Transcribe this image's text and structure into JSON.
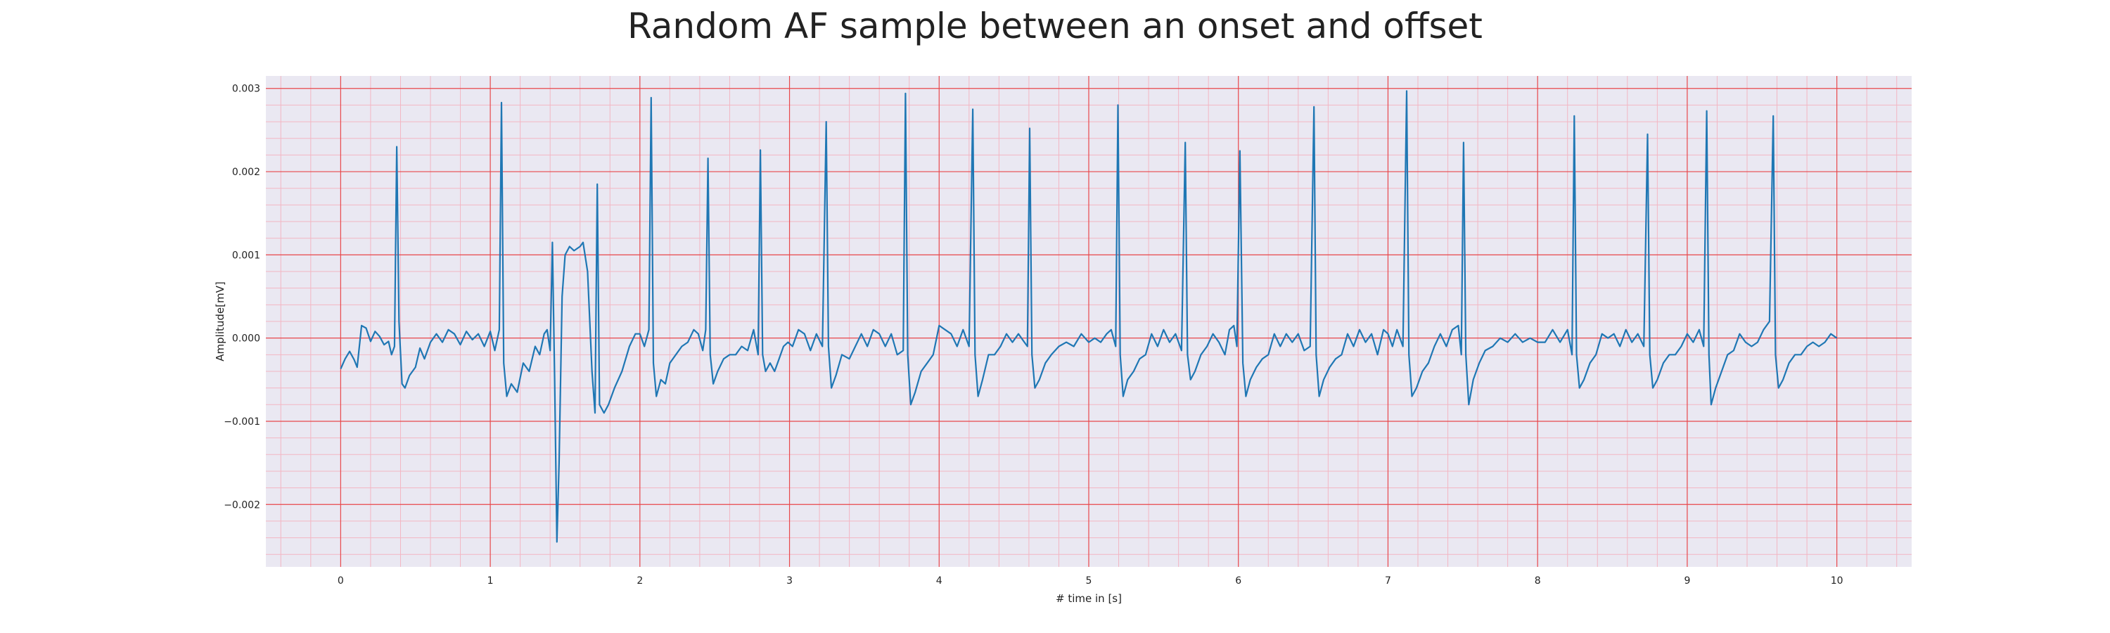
{
  "chart_data": {
    "type": "line",
    "title": "Random AF sample between an onset and offset",
    "xlabel": "# time in [s]",
    "ylabel": "Amplitude[mV]",
    "xlim": [
      -0.5,
      10.5
    ],
    "ylim": [
      -0.00275,
      0.00315
    ],
    "xticks": [
      0,
      1,
      2,
      3,
      4,
      5,
      6,
      7,
      8,
      9,
      10
    ],
    "xtick_labels": [
      "0",
      "1",
      "2",
      "3",
      "4",
      "5",
      "6",
      "7",
      "8",
      "9",
      "10"
    ],
    "yticks": [
      0.003,
      0.002,
      0.001,
      0.0,
      -0.001,
      -0.002
    ],
    "ytick_labels": [
      "0.003",
      "0.002",
      "0.001",
      "0.000",
      "−0.001",
      "−0.002"
    ],
    "grid": true,
    "major_grid_color": "#e8474b",
    "minor_grid_color": "#f3b6c3",
    "background_color": "#eae8f2",
    "line_color": "#1f77b4",
    "series": [
      {
        "values": [
          [
            0.0,
            -0.00037
          ],
          [
            0.03,
            -0.00025
          ],
          [
            0.06,
            -0.00016
          ],
          [
            0.09,
            -0.00026
          ],
          [
            0.11,
            -0.00035
          ],
          [
            0.14,
            0.00015
          ],
          [
            0.17,
            0.00012
          ],
          [
            0.2,
            -4e-05
          ],
          [
            0.23,
            8e-05
          ],
          [
            0.26,
            2e-05
          ],
          [
            0.29,
            -8e-05
          ],
          [
            0.32,
            -4e-05
          ],
          [
            0.34,
            -0.0002
          ],
          [
            0.36,
            -0.0001
          ],
          [
            0.375,
            0.0023
          ],
          [
            0.39,
            0.0002
          ],
          [
            0.41,
            -0.00055
          ],
          [
            0.43,
            -0.0006
          ],
          [
            0.46,
            -0.00045
          ],
          [
            0.5,
            -0.00035
          ],
          [
            0.53,
            -0.00012
          ],
          [
            0.56,
            -0.00025
          ],
          [
            0.6,
            -5e-05
          ],
          [
            0.64,
            5e-05
          ],
          [
            0.68,
            -5e-05
          ],
          [
            0.72,
            0.0001
          ],
          [
            0.76,
            5e-05
          ],
          [
            0.8,
            -8e-05
          ],
          [
            0.84,
            8e-05
          ],
          [
            0.88,
            -2e-05
          ],
          [
            0.92,
            5e-05
          ],
          [
            0.96,
            -0.0001
          ],
          [
            1.0,
            8e-05
          ],
          [
            1.03,
            -0.00015
          ],
          [
            1.06,
            0.0001
          ],
          [
            1.075,
            0.00283
          ],
          [
            1.09,
            -0.0003
          ],
          [
            1.11,
            -0.0007
          ],
          [
            1.14,
            -0.00055
          ],
          [
            1.18,
            -0.00065
          ],
          [
            1.22,
            -0.0003
          ],
          [
            1.26,
            -0.0004
          ],
          [
            1.3,
            -0.0001
          ],
          [
            1.33,
            -0.0002
          ],
          [
            1.36,
            5e-05
          ],
          [
            1.38,
            0.0001
          ],
          [
            1.4,
            -0.00015
          ],
          [
            1.415,
            0.00115
          ],
          [
            1.43,
            -0.0005
          ],
          [
            1.445,
            -0.00245
          ],
          [
            1.46,
            -0.0015
          ],
          [
            1.48,
            0.0005
          ],
          [
            1.5,
            0.001
          ],
          [
            1.53,
            0.0011
          ],
          [
            1.56,
            0.00105
          ],
          [
            1.6,
            0.0011
          ],
          [
            1.62,
            0.00115
          ],
          [
            1.65,
            0.0008
          ],
          [
            1.68,
            -0.0004
          ],
          [
            1.7,
            -0.0009
          ],
          [
            1.715,
            0.00185
          ],
          [
            1.73,
            -0.0008
          ],
          [
            1.76,
            -0.0009
          ],
          [
            1.79,
            -0.0008
          ],
          [
            1.83,
            -0.0006
          ],
          [
            1.88,
            -0.0004
          ],
          [
            1.93,
            -0.0001
          ],
          [
            1.97,
            5e-05
          ],
          [
            2.0,
            5e-05
          ],
          [
            2.03,
            -0.0001
          ],
          [
            2.06,
            0.0001
          ],
          [
            2.075,
            0.00289
          ],
          [
            2.09,
            -0.0003
          ],
          [
            2.11,
            -0.0007
          ],
          [
            2.14,
            -0.0005
          ],
          [
            2.17,
            -0.00055
          ],
          [
            2.2,
            -0.0003
          ],
          [
            2.24,
            -0.0002
          ],
          [
            2.28,
            -0.0001
          ],
          [
            2.32,
            -5e-05
          ],
          [
            2.36,
            0.0001
          ],
          [
            2.39,
            5e-05
          ],
          [
            2.42,
            -0.00015
          ],
          [
            2.44,
            0.0001
          ],
          [
            2.455,
            0.00216
          ],
          [
            2.47,
            -0.0002
          ],
          [
            2.49,
            -0.00055
          ],
          [
            2.52,
            -0.0004
          ],
          [
            2.56,
            -0.00025
          ],
          [
            2.6,
            -0.0002
          ],
          [
            2.64,
            -0.0002
          ],
          [
            2.68,
            -0.0001
          ],
          [
            2.72,
            -0.00015
          ],
          [
            2.76,
            0.0001
          ],
          [
            2.79,
            -0.0002
          ],
          [
            2.805,
            0.00226
          ],
          [
            2.82,
            -0.0002
          ],
          [
            2.84,
            -0.0004
          ],
          [
            2.87,
            -0.0003
          ],
          [
            2.9,
            -0.0004
          ],
          [
            2.93,
            -0.00025
          ],
          [
            2.96,
            -0.0001
          ],
          [
            2.99,
            -5e-05
          ],
          [
            3.02,
            -0.0001
          ],
          [
            3.06,
            0.0001
          ],
          [
            3.1,
            5e-05
          ],
          [
            3.14,
            -0.00015
          ],
          [
            3.18,
            5e-05
          ],
          [
            3.22,
            -0.0001
          ],
          [
            3.245,
            0.0026
          ],
          [
            3.26,
            -0.0001
          ],
          [
            3.28,
            -0.0006
          ],
          [
            3.31,
            -0.00045
          ],
          [
            3.35,
            -0.0002
          ],
          [
            3.4,
            -0.00025
          ],
          [
            3.44,
            -0.0001
          ],
          [
            3.48,
            5e-05
          ],
          [
            3.52,
            -0.0001
          ],
          [
            3.56,
            0.0001
          ],
          [
            3.6,
            5e-05
          ],
          [
            3.64,
            -0.0001
          ],
          [
            3.68,
            5e-05
          ],
          [
            3.72,
            -0.0002
          ],
          [
            3.76,
            -0.00015
          ],
          [
            3.775,
            0.00294
          ],
          [
            3.79,
            -0.0002
          ],
          [
            3.81,
            -0.0008
          ],
          [
            3.84,
            -0.00065
          ],
          [
            3.88,
            -0.0004
          ],
          [
            3.92,
            -0.0003
          ],
          [
            3.96,
            -0.0002
          ],
          [
            4.0,
            0.00015
          ],
          [
            4.04,
            0.0001
          ],
          [
            4.08,
            5e-05
          ],
          [
            4.12,
            -0.0001
          ],
          [
            4.16,
            0.0001
          ],
          [
            4.2,
            -0.0001
          ],
          [
            4.225,
            0.00275
          ],
          [
            4.24,
            -0.0002
          ],
          [
            4.26,
            -0.0007
          ],
          [
            4.29,
            -0.0005
          ],
          [
            4.33,
            -0.0002
          ],
          [
            4.37,
            -0.0002
          ],
          [
            4.41,
            -0.0001
          ],
          [
            4.45,
            5e-05
          ],
          [
            4.49,
            -5e-05
          ],
          [
            4.53,
            5e-05
          ],
          [
            4.57,
            -5e-05
          ],
          [
            4.59,
            -0.0001
          ],
          [
            4.605,
            0.00252
          ],
          [
            4.62,
            -0.0002
          ],
          [
            4.64,
            -0.0006
          ],
          [
            4.67,
            -0.0005
          ],
          [
            4.71,
            -0.0003
          ],
          [
            4.75,
            -0.0002
          ],
          [
            4.8,
            -0.0001
          ],
          [
            4.85,
            -5e-05
          ],
          [
            4.9,
            -0.0001
          ],
          [
            4.95,
            5e-05
          ],
          [
            5.0,
            -5e-05
          ],
          [
            5.04,
            0.0
          ],
          [
            5.08,
            -5e-05
          ],
          [
            5.12,
            5e-05
          ],
          [
            5.15,
            0.0001
          ],
          [
            5.18,
            -0.0001
          ],
          [
            5.195,
            0.0028
          ],
          [
            5.21,
            -0.0002
          ],
          [
            5.23,
            -0.0007
          ],
          [
            5.26,
            -0.0005
          ],
          [
            5.3,
            -0.0004
          ],
          [
            5.34,
            -0.00025
          ],
          [
            5.38,
            -0.0002
          ],
          [
            5.42,
            5e-05
          ],
          [
            5.46,
            -0.0001
          ],
          [
            5.5,
            0.0001
          ],
          [
            5.54,
            -5e-05
          ],
          [
            5.58,
            5e-05
          ],
          [
            5.62,
            -0.00015
          ],
          [
            5.645,
            0.00235
          ],
          [
            5.66,
            -0.0002
          ],
          [
            5.68,
            -0.0005
          ],
          [
            5.71,
            -0.0004
          ],
          [
            5.75,
            -0.0002
          ],
          [
            5.79,
            -0.0001
          ],
          [
            5.83,
            5e-05
          ],
          [
            5.87,
            -5e-05
          ],
          [
            5.91,
            -0.0002
          ],
          [
            5.94,
            0.0001
          ],
          [
            5.97,
            0.00015
          ],
          [
            5.99,
            -0.0001
          ],
          [
            6.01,
            0.00225
          ],
          [
            6.03,
            -0.0003
          ],
          [
            6.05,
            -0.0007
          ],
          [
            6.08,
            -0.0005
          ],
          [
            6.12,
            -0.00035
          ],
          [
            6.16,
            -0.00025
          ],
          [
            6.2,
            -0.0002
          ],
          [
            6.24,
            5e-05
          ],
          [
            6.28,
            -0.0001
          ],
          [
            6.32,
            5e-05
          ],
          [
            6.36,
            -5e-05
          ],
          [
            6.4,
            5e-05
          ],
          [
            6.44,
            -0.00015
          ],
          [
            6.48,
            -0.0001
          ],
          [
            6.505,
            0.00278
          ],
          [
            6.52,
            -0.0002
          ],
          [
            6.54,
            -0.0007
          ],
          [
            6.57,
            -0.0005
          ],
          [
            6.61,
            -0.00035
          ],
          [
            6.65,
            -0.00025
          ],
          [
            6.69,
            -0.0002
          ],
          [
            6.73,
            5e-05
          ],
          [
            6.77,
            -0.0001
          ],
          [
            6.81,
            0.0001
          ],
          [
            6.85,
            -5e-05
          ],
          [
            6.89,
            5e-05
          ],
          [
            6.93,
            -0.0002
          ],
          [
            6.97,
            0.0001
          ],
          [
            7.0,
            5e-05
          ],
          [
            7.03,
            -0.0001
          ],
          [
            7.06,
            0.0001
          ],
          [
            7.1,
            -0.0001
          ],
          [
            7.125,
            0.00297
          ],
          [
            7.14,
            -0.0002
          ],
          [
            7.16,
            -0.0007
          ],
          [
            7.19,
            -0.0006
          ],
          [
            7.23,
            -0.0004
          ],
          [
            7.27,
            -0.0003
          ],
          [
            7.31,
            -0.0001
          ],
          [
            7.35,
            5e-05
          ],
          [
            7.39,
            -0.0001
          ],
          [
            7.43,
            0.0001
          ],
          [
            7.47,
            0.00015
          ],
          [
            7.49,
            -0.0002
          ],
          [
            7.505,
            0.00235
          ],
          [
            7.52,
            -0.0002
          ],
          [
            7.54,
            -0.0008
          ],
          [
            7.57,
            -0.0005
          ],
          [
            7.61,
            -0.0003
          ],
          [
            7.65,
            -0.00015
          ],
          [
            7.7,
            -0.0001
          ],
          [
            7.75,
            0.0
          ],
          [
            7.8,
            -5e-05
          ],
          [
            7.85,
            5e-05
          ],
          [
            7.9,
            -5e-05
          ],
          [
            7.95,
            0.0
          ],
          [
            8.0,
            -5e-05
          ],
          [
            8.05,
            -5e-05
          ],
          [
            8.1,
            0.0001
          ],
          [
            8.15,
            -5e-05
          ],
          [
            8.2,
            0.0001
          ],
          [
            8.23,
            -0.0002
          ],
          [
            8.245,
            0.00267
          ],
          [
            8.26,
            -0.0002
          ],
          [
            8.28,
            -0.0006
          ],
          [
            8.31,
            -0.0005
          ],
          [
            8.35,
            -0.0003
          ],
          [
            8.39,
            -0.0002
          ],
          [
            8.43,
            5e-05
          ],
          [
            8.47,
            0.0
          ],
          [
            8.51,
            5e-05
          ],
          [
            8.55,
            -0.0001
          ],
          [
            8.59,
            0.0001
          ],
          [
            8.63,
            -5e-05
          ],
          [
            8.67,
            5e-05
          ],
          [
            8.71,
            -0.0001
          ],
          [
            8.735,
            0.00245
          ],
          [
            8.75,
            -0.0002
          ],
          [
            8.77,
            -0.0006
          ],
          [
            8.8,
            -0.0005
          ],
          [
            8.84,
            -0.0003
          ],
          [
            8.88,
            -0.0002
          ],
          [
            8.92,
            -0.0002
          ],
          [
            8.96,
            -0.0001
          ],
          [
            9.0,
            5e-05
          ],
          [
            9.04,
            -5e-05
          ],
          [
            9.08,
            0.0001
          ],
          [
            9.11,
            -0.0001
          ],
          [
            9.13,
            0.00273
          ],
          [
            9.145,
            -0.0002
          ],
          [
            9.16,
            -0.0008
          ],
          [
            9.19,
            -0.0006
          ],
          [
            9.23,
            -0.0004
          ],
          [
            9.27,
            -0.0002
          ],
          [
            9.31,
            -0.00015
          ],
          [
            9.35,
            5e-05
          ],
          [
            9.39,
            -5e-05
          ],
          [
            9.43,
            -0.0001
          ],
          [
            9.47,
            -5e-05
          ],
          [
            9.51,
            0.0001
          ],
          [
            9.55,
            0.0002
          ],
          [
            9.575,
            0.00267
          ],
          [
            9.59,
            -0.0002
          ],
          [
            9.61,
            -0.0006
          ],
          [
            9.64,
            -0.0005
          ],
          [
            9.68,
            -0.0003
          ],
          [
            9.72,
            -0.0002
          ],
          [
            9.76,
            -0.0002
          ],
          [
            9.8,
            -0.0001
          ],
          [
            9.84,
            -5e-05
          ],
          [
            9.88,
            -0.0001
          ],
          [
            9.92,
            -5e-05
          ],
          [
            9.96,
            5e-05
          ],
          [
            10.0,
            0.0
          ]
        ]
      }
    ]
  }
}
